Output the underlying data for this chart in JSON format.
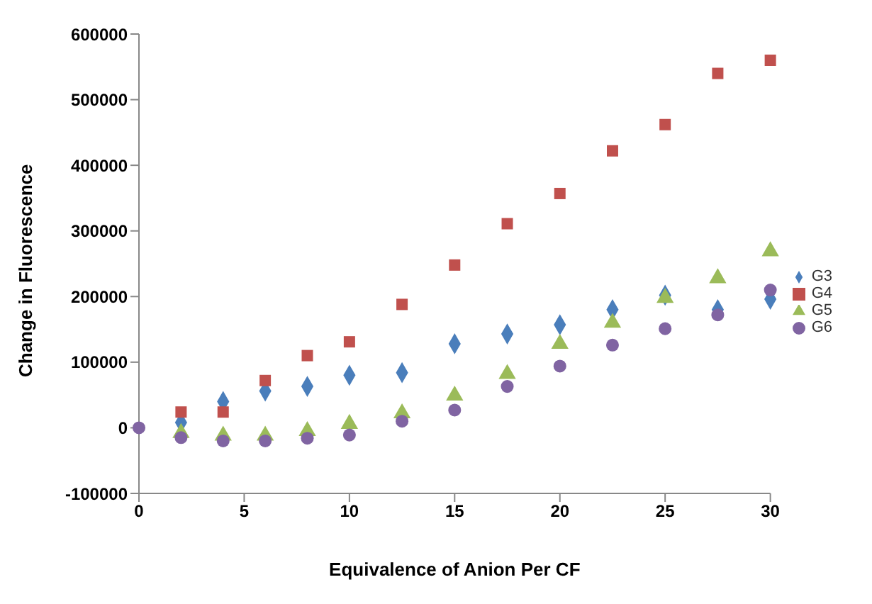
{
  "chart_data": {
    "type": "scatter",
    "xlabel": "Equivalence of Anion Per CF",
    "ylabel": "Change in Fluorescence",
    "x": [
      0,
      2,
      4,
      6,
      8,
      10,
      12.5,
      15,
      17.5,
      20,
      22.5,
      25,
      27.5,
      30
    ],
    "series": [
      {
        "name": "G3",
        "color": "#4a7ebb",
        "marker": "diamond",
        "values": [
          null,
          8000,
          40000,
          56000,
          63000,
          80000,
          84000,
          128000,
          143000,
          157000,
          180000,
          202000,
          180000,
          196000
        ]
      },
      {
        "name": "G4",
        "color": "#c0504d",
        "marker": "square",
        "values": [
          null,
          24000,
          24000,
          72000,
          110000,
          131000,
          188000,
          248000,
          311000,
          357000,
          422000,
          462000,
          540000,
          560000
        ]
      },
      {
        "name": "G5",
        "color": "#9bbb59",
        "marker": "triangle",
        "values": [
          null,
          -8000,
          -12000,
          -12000,
          -5000,
          6000,
          22000,
          49000,
          82000,
          128000,
          160000,
          198000,
          228000,
          269000
        ]
      },
      {
        "name": "G6",
        "color": "#8064a2",
        "marker": "circle",
        "values": [
          0,
          -15000,
          -20000,
          -20000,
          -16000,
          -11000,
          10000,
          27000,
          63000,
          94000,
          126000,
          151000,
          172000,
          210000
        ]
      }
    ],
    "xlim": [
      0,
      30
    ],
    "xticks": [
      0,
      5,
      10,
      15,
      20,
      25,
      30
    ],
    "ylim": [
      -100000,
      600000
    ],
    "yticks": [
      -100000,
      0,
      100000,
      200000,
      300000,
      400000,
      500000,
      600000
    ],
    "grid": false,
    "legend": "right"
  }
}
